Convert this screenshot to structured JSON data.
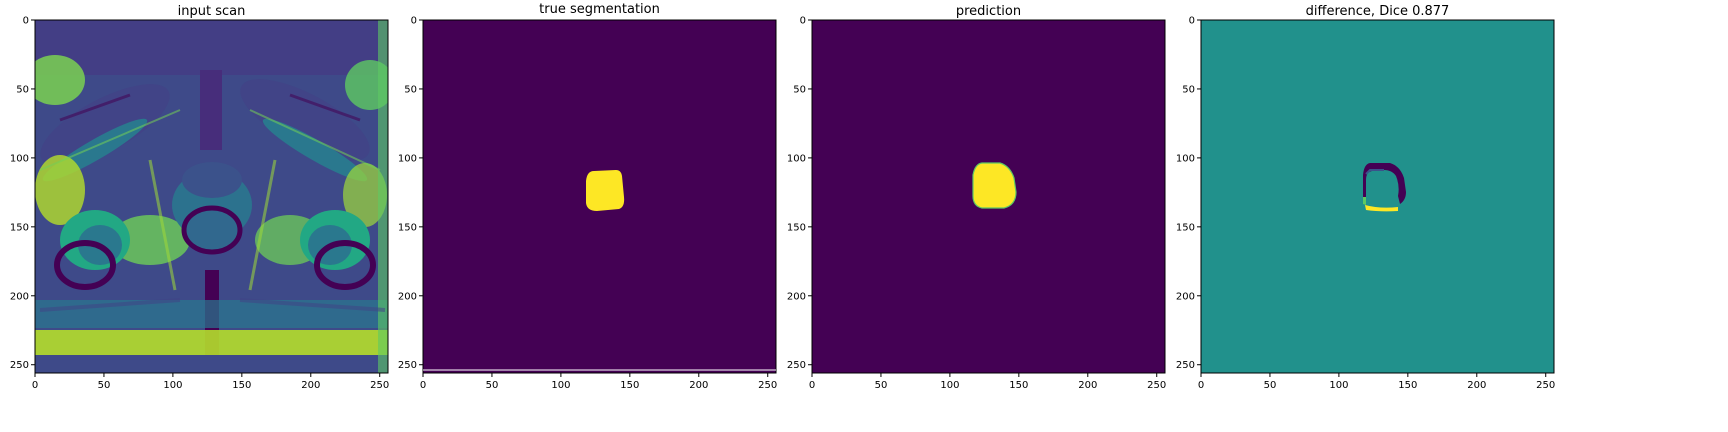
{
  "figure": {
    "panels": [
      {
        "title": "input scan",
        "kind": "mri",
        "xticks": [
          "0",
          "50",
          "100",
          "150",
          "200",
          "250"
        ],
        "yticks": [
          "0",
          "50",
          "100",
          "150",
          "200",
          "250"
        ]
      },
      {
        "title": "true segmentation",
        "kind": "mask",
        "xticks": [
          "0",
          "50",
          "100",
          "150",
          "200",
          "250"
        ],
        "yticks": [
          "0",
          "50",
          "100",
          "150",
          "200",
          "250"
        ]
      },
      {
        "title": "prediction",
        "kind": "mask",
        "xticks": [
          "0",
          "50",
          "100",
          "150",
          "200",
          "250"
        ],
        "yticks": [
          "0",
          "50",
          "100",
          "150",
          "200",
          "250"
        ]
      },
      {
        "title": "difference, Dice 0.877",
        "kind": "diff",
        "xticks": [
          "0",
          "50",
          "100",
          "150",
          "200",
          "250"
        ],
        "yticks": [
          "0",
          "50",
          "100",
          "150",
          "200",
          "250"
        ]
      }
    ],
    "colors": {
      "viridis_dark": "#440154",
      "viridis_mid": "#21918c",
      "viridis_light": "#fde725",
      "viridis_blue": "#3b528b",
      "viridis_green": "#5ec962"
    }
  }
}
